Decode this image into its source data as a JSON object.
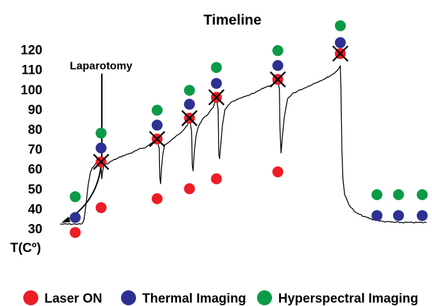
{
  "chart_data": {
    "type": "line",
    "title": "Timeline",
    "ylabel": "T(Cº)",
    "xlabel": "",
    "y_ticks": [
      30,
      40,
      50,
      60,
      70,
      80,
      90,
      100,
      110,
      120
    ],
    "ylim": [
      30,
      122
    ],
    "x_axis": "time (unlabeled, ordinal)",
    "grid": false,
    "legend_position": "bottom",
    "temperature_trace": [
      [
        0,
        32.2
      ],
      [
        5,
        32.2
      ],
      [
        10,
        32.2
      ],
      [
        11,
        34
      ],
      [
        12,
        42
      ],
      [
        13,
        52
      ],
      [
        14,
        58
      ],
      [
        15,
        60.5
      ],
      [
        16,
        62
      ],
      [
        17,
        63
      ],
      [
        18,
        63.5
      ],
      [
        19,
        61
      ],
      [
        19.3,
        55
      ],
      [
        19.6,
        58
      ],
      [
        20.2,
        61.5
      ],
      [
        24,
        64
      ],
      [
        29,
        66.5
      ],
      [
        33,
        68
      ],
      [
        37,
        70
      ],
      [
        40,
        71
      ],
      [
        43,
        73.5
      ],
      [
        45,
        74.5
      ],
      [
        46,
        70
      ],
      [
        46.2,
        56
      ],
      [
        46.6,
        52.5
      ],
      [
        47,
        60
      ],
      [
        47.6,
        67
      ],
      [
        48.5,
        72
      ],
      [
        52,
        75
      ],
      [
        56,
        78
      ],
      [
        59,
        82
      ],
      [
        60,
        85
      ],
      [
        61,
        79
      ],
      [
        61.3,
        62
      ],
      [
        61.7,
        59
      ],
      [
        62.2,
        68
      ],
      [
        63,
        76
      ],
      [
        64,
        81
      ],
      [
        66,
        85
      ],
      [
        69,
        88
      ],
      [
        71,
        91
      ],
      [
        72,
        94
      ],
      [
        72.5,
        95.5
      ],
      [
        73.3,
        90
      ],
      [
        73.6,
        67
      ],
      [
        74,
        65
      ],
      [
        74.5,
        72
      ],
      [
        75.3,
        82
      ],
      [
        76.5,
        90
      ],
      [
        80,
        94
      ],
      [
        85,
        96
      ],
      [
        90,
        98
      ],
      [
        95,
        101
      ],
      [
        100,
        103
      ],
      [
        101,
        104
      ],
      [
        101.7,
        100
      ],
      [
        102,
        80
      ],
      [
        102.5,
        68
      ],
      [
        103,
        75
      ],
      [
        104,
        86
      ],
      [
        105.5,
        95
      ],
      [
        108,
        98
      ],
      [
        112,
        100
      ],
      [
        116,
        102
      ],
      [
        120,
        104
      ],
      [
        124,
        106
      ],
      [
        127,
        108
      ],
      [
        129,
        110
      ],
      [
        130,
        112
      ],
      [
        130.3,
        100
      ],
      [
        130.7,
        70
      ],
      [
        131.2,
        55
      ],
      [
        132,
        47
      ],
      [
        134,
        42
      ],
      [
        137,
        38
      ],
      [
        141,
        36
      ],
      [
        145,
        34.5
      ],
      [
        150,
        33.5
      ],
      [
        155,
        33.1
      ],
      [
        160,
        33
      ],
      [
        165,
        33
      ],
      [
        170,
        33
      ]
    ],
    "events": [
      {
        "x": 7,
        "laser_on": 28,
        "thermal": 35.5,
        "hyperspectral": 46
      },
      {
        "x": 19,
        "laser_on": 40.5,
        "thermal": 70.5,
        "hyperspectral": 78,
        "marked_temp": 63.5,
        "crossed": true
      },
      {
        "x": 45,
        "laser_on": 45,
        "thermal": 82,
        "hyperspectral": 89.5,
        "marked_temp": 75,
        "crossed": true
      },
      {
        "x": 60,
        "laser_on": 50,
        "thermal": 92.5,
        "hyperspectral": 99.5,
        "marked_temp": 85.5,
        "crossed": true
      },
      {
        "x": 72.5,
        "laser_on": 55,
        "thermal": 103,
        "hyperspectral": 111,
        "marked_temp": 96,
        "crossed": true
      },
      {
        "x": 101,
        "laser_on": 58.5,
        "thermal": 112,
        "hyperspectral": 119.5,
        "marked_temp": 105,
        "crossed": true
      },
      {
        "x": 130,
        "laser_on": null,
        "thermal": 123.5,
        "hyperspectral": 132,
        "marked_temp": 118,
        "crossed": true
      },
      {
        "x": 147,
        "laser_on": null,
        "thermal": 36.5,
        "hyperspectral": 47
      },
      {
        "x": 157,
        "laser_on": null,
        "thermal": 36.5,
        "hyperspectral": 47
      },
      {
        "x": 168,
        "laser_on": null,
        "thermal": 36.5,
        "hyperspectral": 47
      }
    ],
    "annotations": [
      {
        "text": "Laparotomy",
        "x": 19,
        "temp": 110,
        "arrow_to": {
          "x": 0,
          "temp": 32.2
        }
      }
    ],
    "legend": [
      {
        "label": "Laser ON",
        "color": "#ee1c25"
      },
      {
        "label": "Thermal Imaging",
        "color": "#2e3192"
      },
      {
        "label": "Hyperspectral Imaging",
        "color": "#0c9a47"
      }
    ]
  }
}
